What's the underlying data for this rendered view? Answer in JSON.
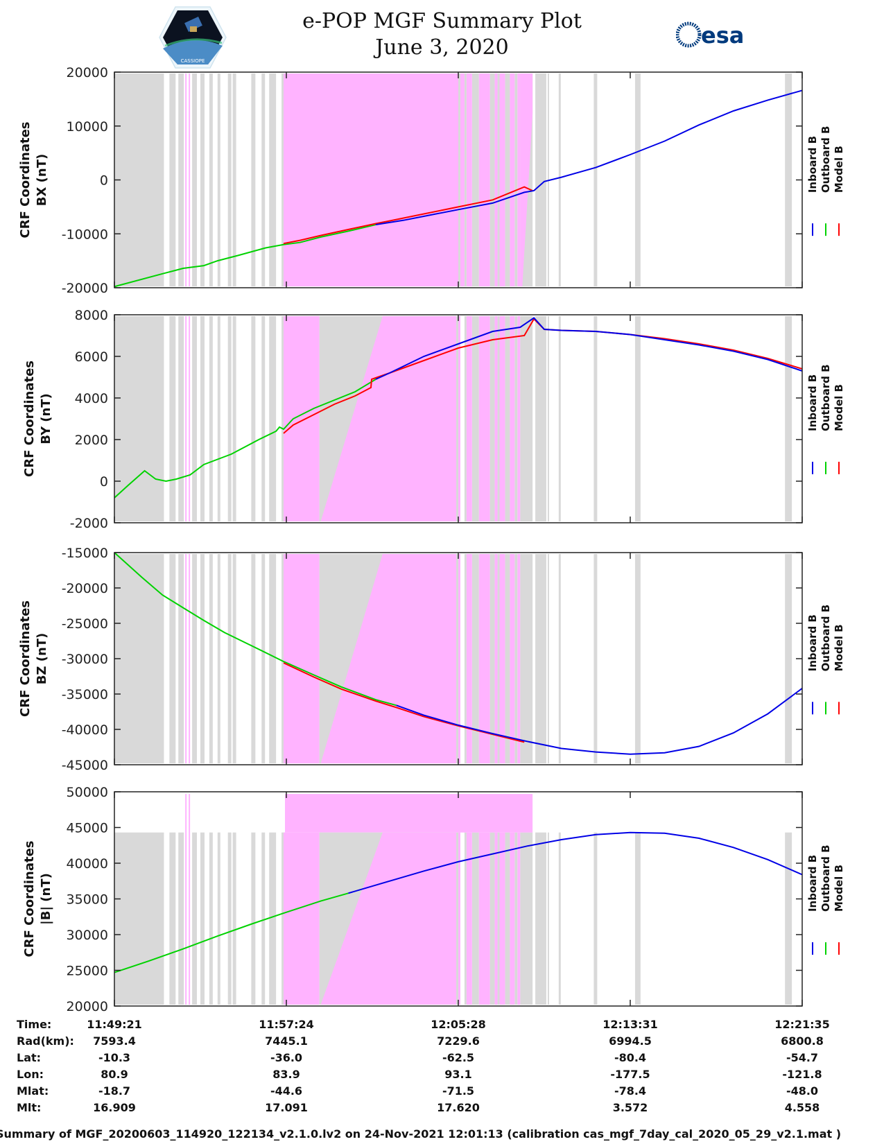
{
  "header": {
    "title_line1": "e-POP MGF Summary Plot",
    "title_line2": "June 3, 2020",
    "logo_left": "cassiope-mission-logo",
    "logo_left_text": "CASSIOPE",
    "logo_right": "esa-logo",
    "logo_right_text": "esa"
  },
  "colors": {
    "inboard": "#0000e6",
    "outboard": "#00d200",
    "model": "#ff0000",
    "gray_band": "#d9d9d9",
    "pink_band": "#ffb3ff",
    "axis": "#222222"
  },
  "chart_data": {
    "type": "line",
    "x_unit": "fraction of time span 11:49:21 - 12:21:35",
    "x_ticks": [
      0,
      0.25,
      0.5,
      0.75,
      1.0
    ],
    "x_tick_labels": [
      "11:49:21",
      "11:57:24",
      "12:05:28",
      "12:13:31",
      "12:21:35"
    ],
    "legend": [
      "Inboard B",
      "Outboard B",
      "Model B"
    ],
    "legend_position": "right",
    "gray_bands": [
      [
        0,
        0.072
      ],
      [
        0.08,
        0.089
      ],
      [
        0.093,
        0.101
      ],
      [
        0.113,
        0.12
      ],
      [
        0.125,
        0.131
      ],
      [
        0.138,
        0.143
      ],
      [
        0.15,
        0.154
      ],
      [
        0.165,
        0.17
      ],
      [
        0.172,
        0.177
      ],
      [
        0.199,
        0.205
      ],
      [
        0.214,
        0.219
      ],
      [
        0.225,
        0.235
      ],
      [
        0.243,
        0.248
      ],
      [
        0.497,
        0.503
      ],
      [
        0.509,
        0.512
      ],
      [
        0.52,
        0.53
      ],
      [
        0.546,
        0.553
      ],
      [
        0.557,
        0.56
      ],
      [
        0.568,
        0.575
      ],
      [
        0.582,
        0.586
      ],
      [
        0.59,
        0.608
      ],
      [
        0.612,
        0.628
      ],
      [
        0.63,
        0.632
      ],
      [
        0.646,
        0.649
      ],
      [
        0.697,
        0.702
      ],
      [
        0.757,
        0.765
      ],
      [
        0.975,
        0.985
      ]
    ],
    "pink_thin_bands": [
      [
        0.103,
        0.105
      ],
      [
        0.108,
        0.11
      ]
    ],
    "panels": [
      {
        "id": "bx",
        "ylabel1": "CRF Coordinates",
        "ylabel2": "BX (nT)",
        "ylim": [
          -20000,
          20000
        ],
        "yticks": [
          -20000,
          -10000,
          0,
          10000,
          20000
        ],
        "shading": "full",
        "pink_main": [
          [
            0.246,
            0.5
          ],
          [
            0.503,
            0.509
          ],
          [
            0.512,
            0.52
          ],
          [
            0.53,
            0.546
          ],
          [
            0.553,
            0.557
          ],
          [
            0.56,
            0.568
          ],
          [
            0.575,
            0.582
          ],
          [
            0.586,
            0.59
          ]
        ],
        "pink_wedge": {
          "x_top": [
            0.59,
            0.608
          ],
          "x_bottom": [
            0.59,
            0.593
          ]
        },
        "series": [
          {
            "name": "Outboard B",
            "x": [
              0,
              0.07,
              0.1,
              0.13,
              0.15,
              0.18,
              0.22,
              0.246,
              0.27,
              0.3,
              0.34,
              0.38
            ],
            "y": [
              -19800,
              -17400,
              -16400,
              -15900,
              -15000,
              -14000,
              -12600,
              -12000,
              -11600,
              -10600,
              -9500,
              -8300
            ]
          },
          {
            "name": "Model B",
            "x": [
              0.246,
              0.27,
              0.3,
              0.34,
              0.38,
              0.4,
              0.45,
              0.5,
              0.55,
              0.596,
              0.608
            ],
            "y": [
              -11800,
              -11200,
              -10300,
              -9200,
              -8100,
              -7600,
              -6300,
              -5000,
              -3700,
              -1300,
              -2000
            ]
          },
          {
            "name": "Inboard B",
            "x": [
              0.38,
              0.42,
              0.46,
              0.5,
              0.55,
              0.596,
              0.61,
              0.625,
              0.65,
              0.7,
              0.75,
              0.8,
              0.85,
              0.9,
              0.95,
              1.0
            ],
            "y": [
              -8300,
              -7500,
              -6500,
              -5500,
              -4300,
              -2300,
              -2000,
              -300,
              500,
              2300,
              4700,
              7200,
              10200,
              12800,
              14800,
              16600
            ]
          }
        ]
      },
      {
        "id": "by",
        "ylabel1": "CRF Coordinates",
        "ylabel2": "BY (nT)",
        "ylim": [
          -2000,
          8000
        ],
        "yticks": [
          -2000,
          0,
          2000,
          4000,
          6000,
          8000
        ],
        "shading": "full",
        "pink_main": [
          [
            0.246,
            0.298
          ],
          [
            0.5,
            0.503
          ],
          [
            0.512,
            0.52
          ],
          [
            0.53,
            0.546
          ],
          [
            0.553,
            0.557
          ],
          [
            0.56,
            0.568
          ],
          [
            0.575,
            0.582
          ],
          [
            0.586,
            0.59
          ]
        ],
        "pink_wedge": {
          "x_top": [
            0.39,
            0.497
          ],
          "x_bottom": [
            0.3,
            0.497
          ]
        },
        "series": [
          {
            "name": "Outboard B",
            "x": [
              0,
              0.02,
              0.044,
              0.06,
              0.075,
              0.09,
              0.11,
              0.13,
              0.15,
              0.17,
              0.19,
              0.21,
              0.235,
              0.24,
              0.246,
              0.26,
              0.29,
              0.32,
              0.35,
              0.38
            ],
            "y": [
              -800,
              -200,
              500,
              100,
              0,
              100,
              300,
              800,
              1050,
              1300,
              1650,
              2000,
              2400,
              2600,
              2500,
              3000,
              3500,
              3900,
              4300,
              4900
            ]
          },
          {
            "name": "Model B",
            "x": [
              0.246,
              0.26,
              0.29,
              0.32,
              0.35,
              0.373,
              0.374,
              0.4,
              0.45,
              0.5,
              0.55,
              0.596,
              0.61,
              0.625,
              0.65,
              0.7,
              0.75,
              0.8,
              0.85,
              0.9,
              0.95,
              1.0
            ],
            "y": [
              2300,
              2700,
              3200,
              3700,
              4100,
              4500,
              4900,
              5200,
              5800,
              6400,
              6800,
              7000,
              7800,
              7300,
              7250,
              7200,
              7050,
              6850,
              6600,
              6300,
              5900,
              5400
            ]
          },
          {
            "name": "Inboard B",
            "x": [
              0.38,
              0.4,
              0.45,
              0.5,
              0.55,
              0.59,
              0.61,
              0.625,
              0.65,
              0.7,
              0.75,
              0.77,
              0.8,
              0.85,
              0.9,
              0.95,
              1.0
            ],
            "y": [
              4900,
              5200,
              6000,
              6600,
              7200,
              7400,
              7850,
              7300,
              7250,
              7200,
              7050,
              6950,
              6800,
              6550,
              6250,
              5850,
              5300
            ]
          }
        ]
      },
      {
        "id": "bz",
        "ylabel1": "CRF Coordinates",
        "ylabel2": "BZ (nT)",
        "ylim": [
          -45000,
          -15000
        ],
        "yticks": [
          -45000,
          -40000,
          -35000,
          -30000,
          -25000,
          -20000,
          -15000
        ],
        "shading": "full",
        "pink_main": [
          [
            0.246,
            0.298
          ],
          [
            0.5,
            0.503
          ],
          [
            0.512,
            0.52
          ],
          [
            0.53,
            0.546
          ],
          [
            0.553,
            0.557
          ],
          [
            0.56,
            0.568
          ],
          [
            0.575,
            0.582
          ],
          [
            0.586,
            0.59
          ]
        ],
        "pink_wedge": {
          "x_top": [
            0.39,
            0.497
          ],
          "x_bottom": [
            0.3,
            0.497
          ]
        },
        "series": [
          {
            "name": "Outboard B",
            "x": [
              0,
              0.04,
              0.07,
              0.1,
              0.13,
              0.16,
              0.2,
              0.246,
              0.29,
              0.33,
              0.38,
              0.41
            ],
            "y": [
              -15000,
              -18500,
              -21000,
              -22800,
              -24600,
              -26300,
              -28200,
              -30400,
              -32300,
              -34000,
              -35800,
              -36600
            ]
          },
          {
            "name": "Model B",
            "x": [
              0.246,
              0.29,
              0.33,
              0.38,
              0.41,
              0.45,
              0.5,
              0.55,
              0.596
            ],
            "y": [
              -30600,
              -32600,
              -34300,
              -36000,
              -36900,
              -38200,
              -39500,
              -40700,
              -41800
            ]
          },
          {
            "name": "Inboard B",
            "x": [
              0.41,
              0.45,
              0.5,
              0.55,
              0.6,
              0.65,
              0.7,
              0.75,
              0.8,
              0.85,
              0.9,
              0.95,
              1.0
            ],
            "y": [
              -36600,
              -38000,
              -39400,
              -40600,
              -41700,
              -42700,
              -43200,
              -43500,
              -43300,
              -42400,
              -40500,
              -37800,
              -34200
            ]
          }
        ]
      },
      {
        "id": "bmag",
        "ylabel1": "CRF Coordinates",
        "ylabel2": "|B| (nT)",
        "ylim": [
          20000,
          50000
        ],
        "yticks": [
          20000,
          25000,
          30000,
          35000,
          40000,
          45000,
          50000
        ],
        "shading": "partial",
        "shade_top_value": 44300,
        "pink_top_value": 49700,
        "pink_block": [
          0.248,
          0.608
        ],
        "pink_thin_top_value": 49700,
        "pink_main": [
          [
            0.246,
            0.298
          ],
          [
            0.5,
            0.503
          ],
          [
            0.512,
            0.52
          ],
          [
            0.53,
            0.546
          ],
          [
            0.553,
            0.557
          ],
          [
            0.56,
            0.568
          ],
          [
            0.575,
            0.582
          ],
          [
            0.586,
            0.59
          ]
        ],
        "pink_wedge": {
          "x_top": [
            0.39,
            0.497
          ],
          "x_bottom": [
            0.3,
            0.497
          ]
        },
        "series": [
          {
            "name": "Outboard B",
            "x": [
              0,
              0.05,
              0.1,
              0.15,
              0.2,
              0.246,
              0.3,
              0.34
            ],
            "y": [
              24700,
              26300,
              28000,
              29800,
              31500,
              33000,
              34700,
              35800
            ]
          },
          {
            "name": "Inboard B",
            "x": [
              0.34,
              0.4,
              0.45,
              0.5,
              0.55,
              0.6,
              0.65,
              0.7,
              0.75,
              0.8,
              0.85,
              0.9,
              0.95,
              1.0
            ],
            "y": [
              35800,
              37500,
              38900,
              40200,
              41300,
              42400,
              43300,
              44000,
              44300,
              44200,
              43500,
              42200,
              40500,
              38400
            ]
          }
        ]
      }
    ]
  },
  "info_table": {
    "labels": [
      "Time:",
      "Rad(km):",
      "Lat:",
      "Lon:",
      "Mlat:",
      "Mlt:"
    ],
    "columns": [
      [
        "11:49:21",
        "7593.4",
        "-10.3",
        "80.9",
        "-18.7",
        "16.909"
      ],
      [
        "11:57:24",
        "7445.1",
        "-36.0",
        "83.9",
        "-44.6",
        "17.091"
      ],
      [
        "12:05:28",
        "7229.6",
        "-62.5",
        "93.1",
        "-71.5",
        "17.620"
      ],
      [
        "12:13:31",
        "6994.5",
        "-80.4",
        "-177.5",
        "-78.4",
        "3.572"
      ],
      [
        "12:21:35",
        "6800.8",
        "-54.7",
        "-121.8",
        "-48.0",
        "4.558"
      ]
    ]
  },
  "footer": "Summary of MGF_20200603_114920_122134_v2.1.0.lv2 on 24-Nov-2021 12:01:13 (calibration cas_mgf_7day_cal_2020_05_29_v2.1.mat )"
}
